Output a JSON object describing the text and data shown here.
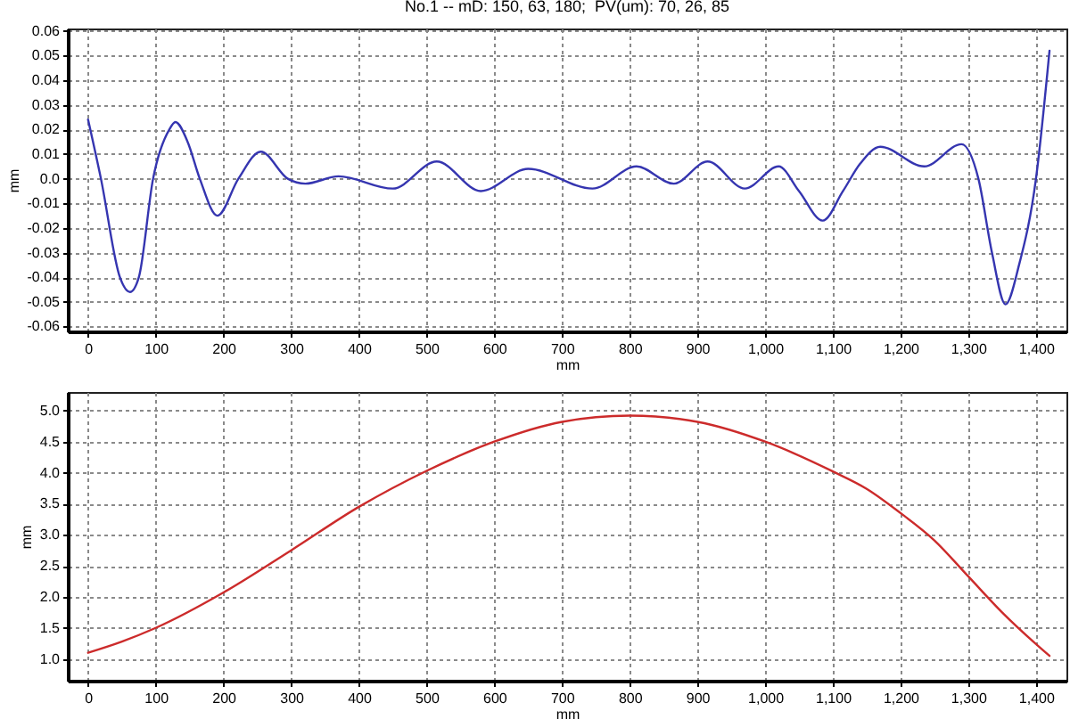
{
  "chart_data": [
    {
      "type": "line",
      "title": "No.1 -- mD: 150, 63, 180;  PV(um): 70, 26, 85",
      "xlabel": "mm",
      "ylabel": "mm",
      "x": [
        0,
        19,
        47,
        62,
        75,
        96,
        120,
        129,
        147,
        165,
        191,
        222,
        255,
        295,
        321,
        370,
        450,
        515,
        580,
        650,
        745,
        810,
        865,
        915,
        970,
        1020,
        1050,
        1085,
        1115,
        1140,
        1170,
        1235,
        1290,
        1315,
        1335,
        1355,
        1375,
        1400,
        1420
      ],
      "series": [
        {
          "color": "#3535b0",
          "values": [
            0.024,
            0.0,
            -0.04,
            -0.046,
            -0.04,
            0.0,
            0.02,
            0.023,
            0.015,
            0.0,
            -0.015,
            0.0,
            0.011,
            0.0,
            -0.002,
            0.001,
            -0.004,
            0.007,
            -0.005,
            0.004,
            -0.004,
            0.005,
            -0.002,
            0.007,
            -0.004,
            0.005,
            -0.005,
            -0.017,
            -0.005,
            0.006,
            0.013,
            0.005,
            0.014,
            0.0,
            -0.03,
            -0.051,
            -0.035,
            0.0,
            0.052
          ]
        }
      ],
      "xlim": [
        -30,
        1445
      ],
      "ylim": [
        -0.062,
        0.061
      ],
      "xticks": [
        0,
        100,
        200,
        300,
        400,
        500,
        600,
        700,
        800,
        900,
        {
          "value": 1000,
          "label": "1,000"
        },
        {
          "value": 1100,
          "label": "1,100"
        },
        {
          "value": 1200,
          "label": "1,200"
        },
        {
          "value": 1300,
          "label": "1,300"
        },
        {
          "value": 1400,
          "label": "1,400"
        }
      ],
      "yticks": [
        -0.06,
        -0.05,
        -0.04,
        -0.03,
        -0.02,
        -0.01,
        {
          "value": 0,
          "label": "0.0"
        },
        0.01,
        0.02,
        0.03,
        0.04,
        0.05,
        0.06
      ],
      "grid": true
    },
    {
      "type": "line",
      "xlabel": "mm",
      "ylabel": "mm",
      "x": [
        0,
        50,
        100,
        200,
        300,
        400,
        500,
        600,
        700,
        800,
        900,
        1000,
        1100,
        1150,
        1200,
        1250,
        1300,
        1350,
        1400,
        1420
      ],
      "series": [
        {
          "color": "#cc2b2b",
          "values": [
            1.1,
            1.28,
            1.5,
            2.07,
            2.75,
            3.45,
            4.03,
            4.5,
            4.82,
            4.92,
            4.82,
            4.5,
            4.02,
            3.74,
            3.35,
            2.91,
            2.33,
            1.75,
            1.24,
            1.05
          ]
        }
      ],
      "xlim": [
        -30,
        1445
      ],
      "ylim": [
        0.65,
        5.3
      ],
      "xticks": [
        0,
        100,
        200,
        300,
        400,
        500,
        600,
        700,
        800,
        900,
        {
          "value": 1000,
          "label": "1,000"
        },
        {
          "value": 1100,
          "label": "1,100"
        },
        {
          "value": 1200,
          "label": "1,200"
        },
        {
          "value": 1300,
          "label": "1,300"
        },
        {
          "value": 1400,
          "label": "1,400"
        }
      ],
      "yticks": [
        {
          "value": 1,
          "label": "1.0"
        },
        1.5,
        {
          "value": 2,
          "label": "2.0"
        },
        2.5,
        {
          "value": 3,
          "label": "3.0"
        },
        3.5,
        {
          "value": 4,
          "label": "4.0"
        },
        4.5,
        {
          "value": 5,
          "label": "5.0"
        }
      ],
      "grid": true
    }
  ]
}
